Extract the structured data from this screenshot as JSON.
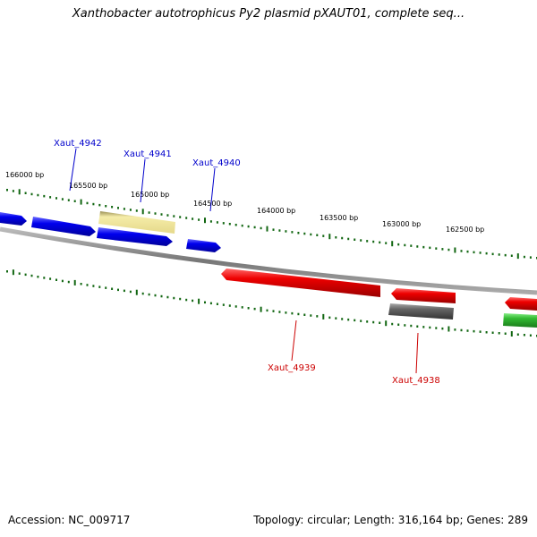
{
  "title": "Xanthobacter autotrophicus Py2 plasmid pXAUT01, complete seq...",
  "footer": {
    "accession": "Accession: NC_009717",
    "summary": "Topology: circular; Length: 316,164 bp; Genes: 289"
  },
  "scale_labels": [
    "166000 bp",
    "165500 bp",
    "165000 bp",
    "164500 bp",
    "164000 bp",
    "163500 bp",
    "163000 bp",
    "162500 bp"
  ],
  "genes": [
    {
      "id": "Xaut_4942",
      "color": "#0000cc"
    },
    {
      "id": "Xaut_4941",
      "color": "#0000cc"
    },
    {
      "id": "Xaut_4940",
      "color": "#0000cc"
    },
    {
      "id": "Xaut_4939",
      "color": "#cc0000"
    },
    {
      "id": "Xaut_4938",
      "color": "#cc0000"
    }
  ],
  "colors": {
    "forward_cds": "#0000ee",
    "reverse_cds": "#ee0000",
    "pseudogene": "#e8dc8c",
    "other": "#666666",
    "rna": "#33bb33",
    "tick": "#116611",
    "backbone": "#888888"
  }
}
